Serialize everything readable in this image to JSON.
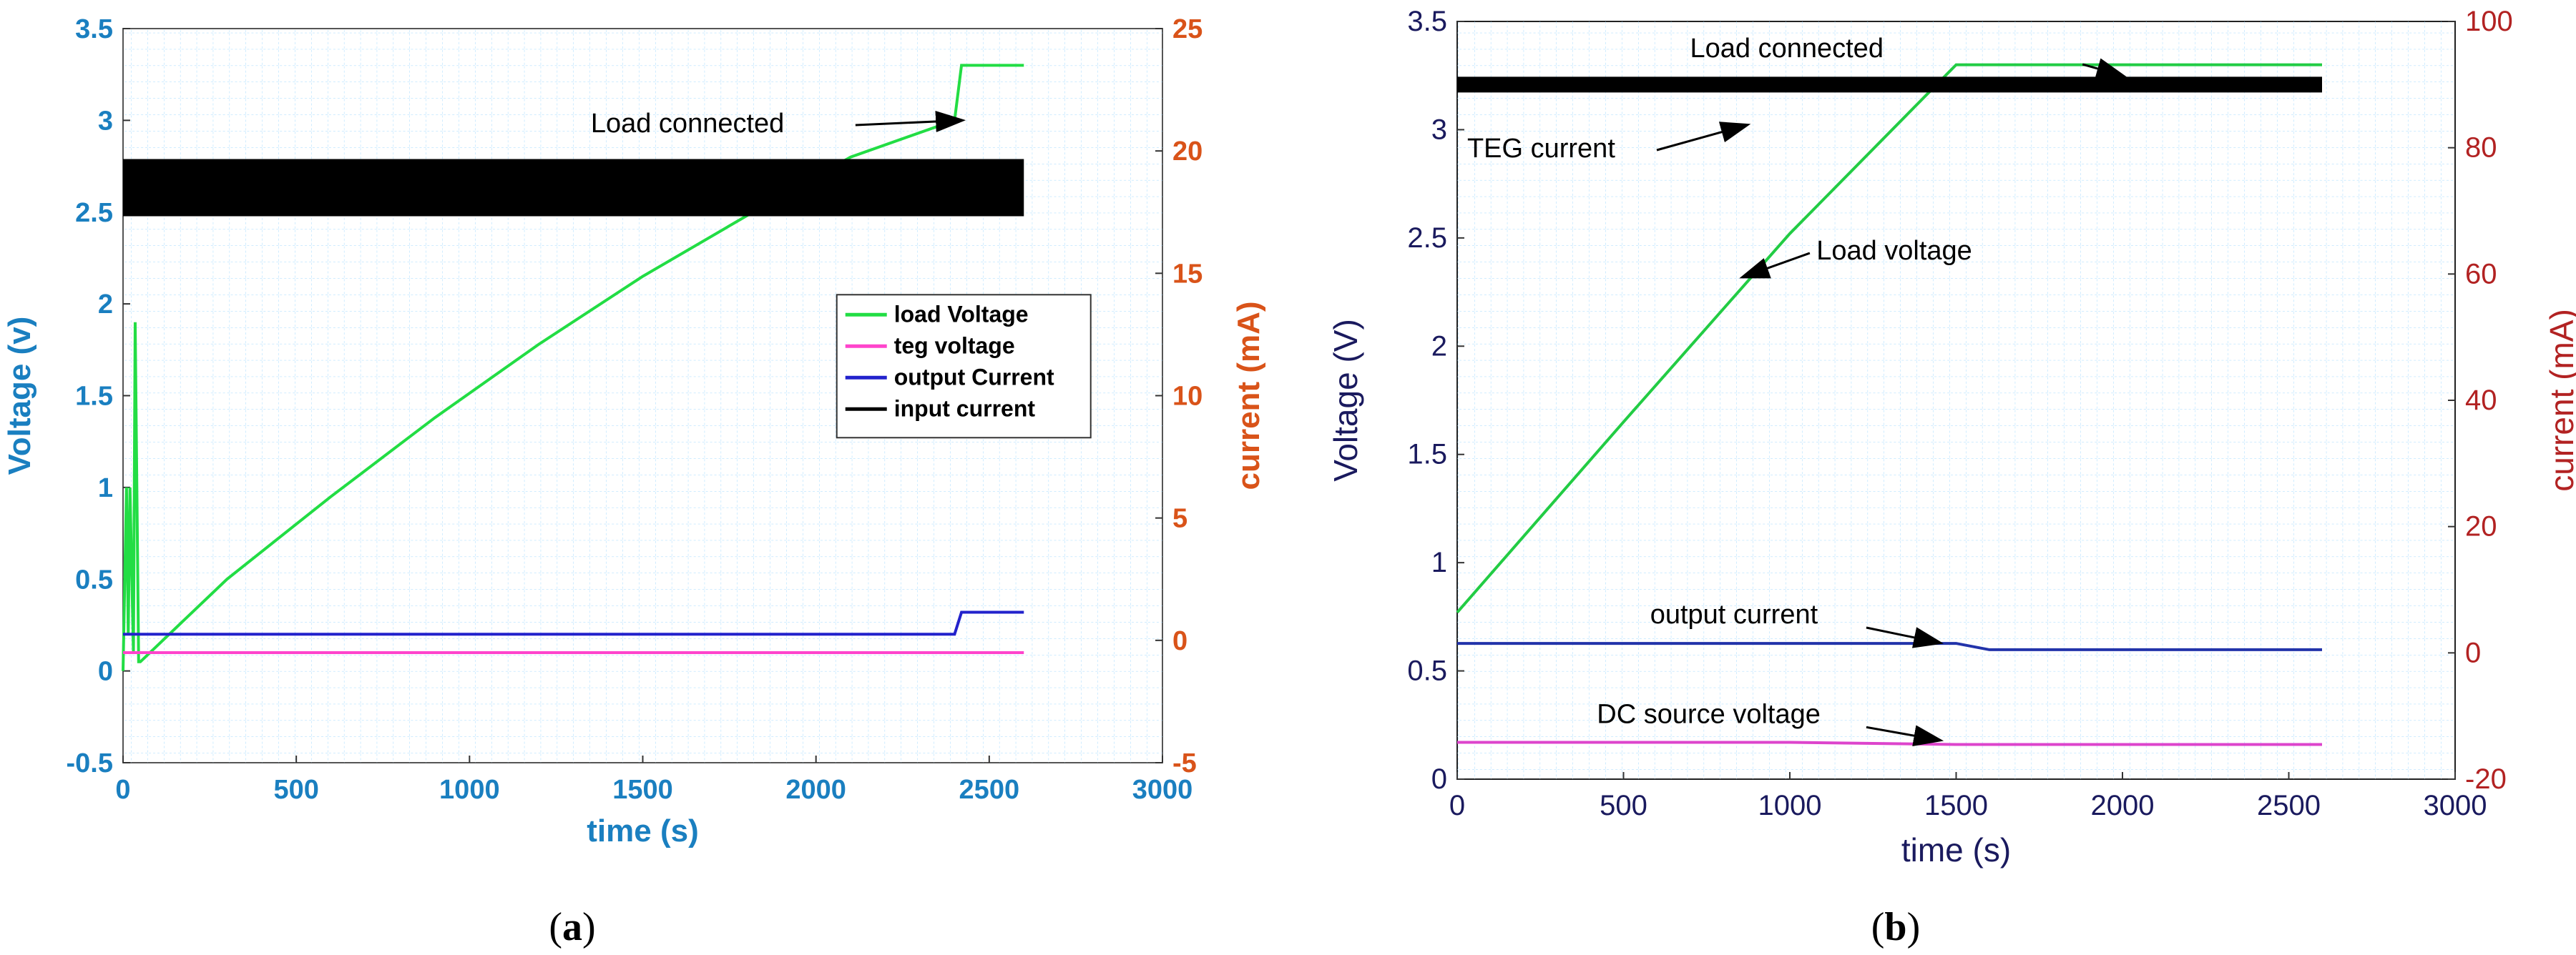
{
  "panels": [
    {
      "label_prefix": "(",
      "label_letter": "a",
      "label_suffix": ")"
    },
    {
      "label_prefix": "(",
      "label_letter": "b",
      "label_suffix": ")"
    }
  ],
  "chart_data": [
    {
      "type": "line",
      "xlabel": "time (s)",
      "ylabel": "Voltage (v)",
      "y2label": "current (mA)",
      "xlim": [
        0,
        3000
      ],
      "ylim": [
        -0.5,
        3.5
      ],
      "y2lim": [
        -5,
        25
      ],
      "xticks": [
        "0",
        "500",
        "1000",
        "1500",
        "2000",
        "2500",
        "3000"
      ],
      "yticks": [
        "-0.5",
        "0",
        "0.5",
        "1",
        "1.5",
        "2",
        "2.5",
        "3",
        "3.5"
      ],
      "y2ticks": [
        "-5",
        "0",
        "5",
        "10",
        "15",
        "20",
        "25"
      ],
      "grid": true,
      "legend_position": "center-right",
      "series": [
        {
          "name": "load Voltage",
          "color": "#22dd44",
          "axis": "left",
          "x": [
            0,
            10,
            15,
            20,
            30,
            35,
            45,
            50,
            300,
            600,
            900,
            1200,
            1500,
            1800,
            2100,
            2400,
            2420,
            2600
          ],
          "y": [
            0,
            1.0,
            0.2,
            1.0,
            0.1,
            1.9,
            0.05,
            0.05,
            0.5,
            0.95,
            1.38,
            1.78,
            2.15,
            2.48,
            2.8,
            3.0,
            3.3,
            3.3
          ]
        },
        {
          "name": "teg voltage",
          "color": "#ff44cc",
          "axis": "left",
          "x": [
            0,
            500,
            1000,
            1500,
            2000,
            2600
          ],
          "y": [
            0.1,
            0.1,
            0.1,
            0.1,
            0.1,
            0.1
          ]
        },
        {
          "name": "output Current",
          "color": "#2222cc",
          "axis": "left",
          "x": [
            0,
            500,
            1000,
            1500,
            2000,
            2400,
            2420,
            2600
          ],
          "y": [
            0.2,
            0.2,
            0.2,
            0.2,
            0.2,
            0.2,
            0.32,
            0.32
          ]
        },
        {
          "name": "input current",
          "color": "#000000",
          "axis": "right",
          "x": [
            0,
            2600
          ],
          "y": [
            18.5,
            18.5
          ]
        }
      ],
      "annotations": [
        {
          "text": "Load connected",
          "x": 1350,
          "y": 3.1
        }
      ]
    },
    {
      "type": "line",
      "xlabel": "time (s)",
      "ylabel": "Voltage (V)",
      "y2label": "current (mA)",
      "xlim": [
        0,
        3000
      ],
      "ylim": [
        0,
        3.5
      ],
      "y2lim": [
        -20,
        100
      ],
      "xticks": [
        "0",
        "500",
        "1000",
        "1500",
        "2000",
        "2500",
        "3000"
      ],
      "yticks": [
        "0",
        "0.5",
        "1",
        "1.5",
        "2",
        "2.5",
        "3",
        "3.5"
      ],
      "y2ticks": [
        "-20",
        "0",
        "20",
        "40",
        "60",
        "80",
        "100"
      ],
      "grid": true,
      "series": [
        {
          "name": "Load voltage",
          "color": "#22cc44",
          "axis": "left",
          "x": [
            0,
            500,
            1000,
            1500,
            2000,
            2600
          ],
          "y": [
            0.77,
            1.65,
            2.52,
            3.3,
            3.3,
            3.3
          ]
        },
        {
          "name": "TEG current",
          "color": "#000000",
          "axis": "right",
          "x": [
            0,
            500,
            1000,
            1500,
            2000,
            2600
          ],
          "y": [
            90,
            90,
            90,
            90,
            90,
            90
          ]
        },
        {
          "name": "output current",
          "color": "#2233aa",
          "axis": "right",
          "x": [
            0,
            500,
            1000,
            1500,
            1600,
            2000,
            2600
          ],
          "y": [
            1.5,
            1.5,
            1.5,
            1.5,
            0.5,
            0.5,
            0.5
          ]
        },
        {
          "name": "DC source voltage",
          "color": "#dd44cc",
          "axis": "left",
          "x": [
            0,
            500,
            1000,
            1500,
            2000,
            2600
          ],
          "y": [
            0.17,
            0.17,
            0.17,
            0.16,
            0.16,
            0.16
          ]
        }
      ],
      "annotations": [
        {
          "text": "Load connected",
          "x": 2000,
          "y": 3.3
        },
        {
          "text": "TEG current",
          "x": 700,
          "y": 3.1
        },
        {
          "text": "Load voltage",
          "x": 850,
          "y": 2.35
        },
        {
          "text": "output current",
          "x": 1420,
          "y": 0.62
        },
        {
          "text": "DC source voltage",
          "x": 1420,
          "y": 0.16
        }
      ]
    }
  ]
}
